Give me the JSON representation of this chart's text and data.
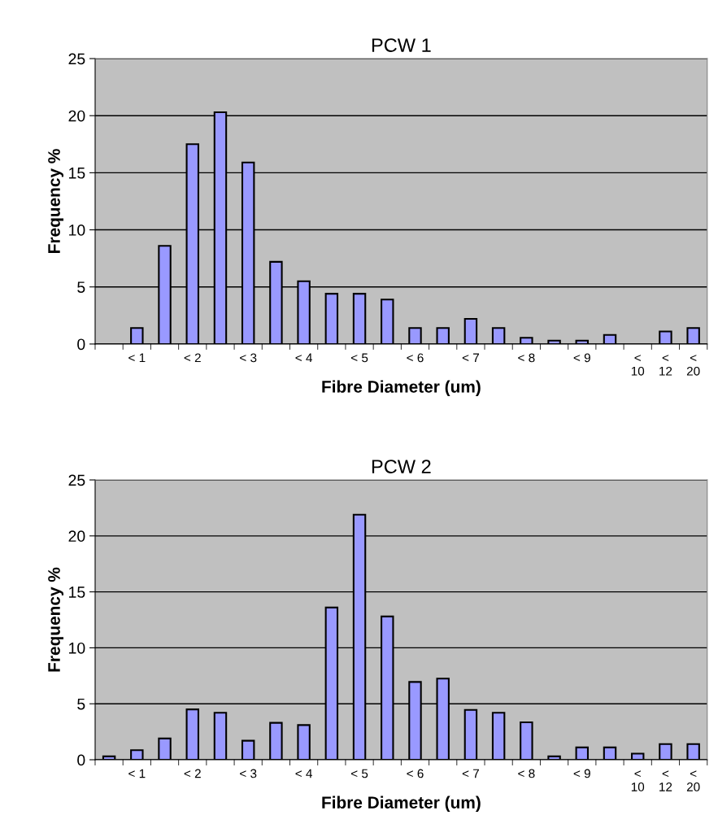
{
  "chart_data": [
    {
      "type": "bar",
      "title": "PCW 1",
      "xlabel": "Fibre Diameter (um)",
      "ylabel": "Frequency %",
      "categories": [
        null,
        "< 1",
        null,
        "< 2",
        null,
        "< 3",
        null,
        "< 4",
        null,
        "< 5",
        null,
        "< 6",
        null,
        "< 7",
        null,
        "< 8",
        null,
        "< 9",
        null,
        "<\n10",
        "<\n12",
        "<\n20"
      ],
      "values": [
        0,
        1.4,
        8.6,
        17.5,
        20.3,
        15.9,
        7.2,
        5.5,
        4.4,
        4.4,
        3.9,
        1.4,
        1.4,
        2.2,
        1.4,
        0.55,
        0.3,
        0.3,
        0.8,
        0,
        1.1,
        1.4
      ],
      "color": "#9999ff",
      "ylim": [
        0,
        25
      ],
      "yticks": [
        0,
        5,
        10,
        15,
        20,
        25
      ],
      "grid": "y",
      "legend": false
    },
    {
      "type": "bar",
      "title": "PCW 2",
      "xlabel": "Fibre Diameter (um)",
      "ylabel": "Frequency %",
      "categories": [
        null,
        "< 1",
        null,
        "< 2",
        null,
        "< 3",
        null,
        "< 4",
        null,
        "< 5",
        null,
        "< 6",
        null,
        "< 7",
        null,
        "< 8",
        null,
        "< 9",
        null,
        "<\n10",
        "<\n12",
        "<\n20"
      ],
      "values": [
        0.3,
        0.85,
        1.9,
        4.5,
        4.2,
        1.7,
        3.3,
        3.1,
        13.6,
        21.9,
        12.8,
        6.95,
        7.25,
        4.45,
        4.2,
        3.35,
        0.3,
        1.1,
        1.1,
        0.55,
        1.4,
        1.4
      ],
      "color": "#9999ff",
      "ylim": [
        0,
        25
      ],
      "yticks": [
        0,
        5,
        10,
        15,
        20,
        25
      ],
      "grid": "y",
      "legend": false
    }
  ]
}
